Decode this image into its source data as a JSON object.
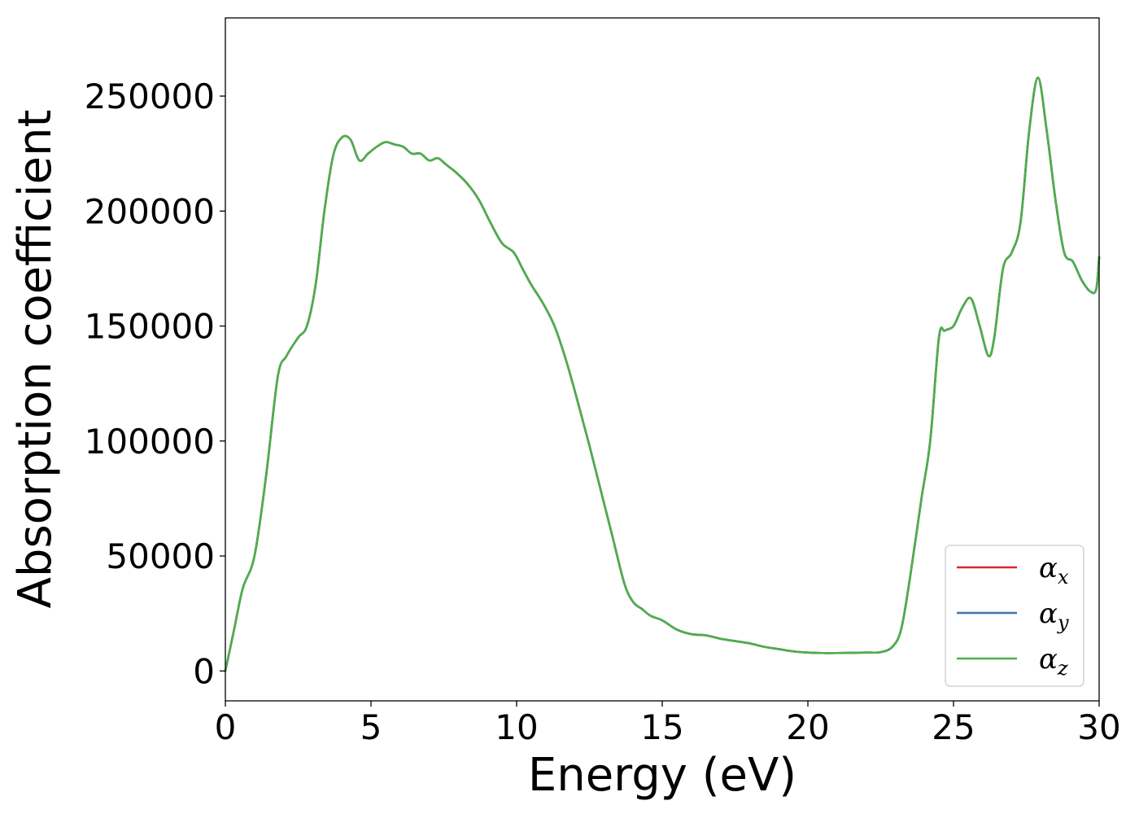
{
  "chart_data": {
    "type": "line",
    "xlabel": "Energy (eV)",
    "ylabel": "Absorption coefficient",
    "xlim": [
      0,
      30
    ],
    "ylim": [
      -13000,
      284000
    ],
    "xticks": [
      0,
      5,
      10,
      15,
      20,
      25,
      30
    ],
    "yticks": [
      0,
      50000,
      100000,
      150000,
      200000,
      250000
    ],
    "grid": false,
    "legend_position": "bottom-right",
    "x": [
      0,
      0.3,
      0.6,
      1.0,
      1.4,
      1.8,
      2.1,
      2.5,
      2.8,
      3.1,
      3.4,
      3.7,
      4.0,
      4.3,
      4.6,
      4.9,
      5.2,
      5.5,
      5.8,
      6.1,
      6.4,
      6.7,
      7.0,
      7.3,
      7.6,
      7.9,
      8.3,
      8.7,
      9.1,
      9.5,
      9.9,
      10.2,
      10.5,
      10.9,
      11.3,
      11.7,
      12.1,
      12.5,
      12.9,
      13.3,
      13.7,
      14.0,
      14.3,
      14.6,
      15.0,
      15.5,
      16.0,
      16.5,
      17.0,
      17.5,
      18.0,
      18.5,
      19.0,
      19.5,
      20.0,
      20.5,
      21.0,
      21.5,
      22.0,
      22.5,
      22.9,
      23.2,
      23.5,
      23.9,
      24.2,
      24.5,
      24.7,
      25.0,
      25.3,
      25.6,
      25.9,
      26.2,
      26.4,
      26.7,
      27.0,
      27.3,
      27.6,
      27.9,
      28.2,
      28.5,
      28.8,
      29.1,
      29.4,
      29.7,
      29.9,
      30.0
    ],
    "series": [
      {
        "name": "α_x",
        "color": "#d62728",
        "y": [
          0,
          18000,
          36000,
          50000,
          85000,
          128000,
          137000,
          145000,
          150000,
          168000,
          200000,
          224000,
          232000,
          231000,
          222000,
          225000,
          228000,
          230000,
          229000,
          228000,
          225000,
          225000,
          222000,
          223000,
          220000,
          217000,
          212000,
          205000,
          195000,
          186000,
          182000,
          175000,
          168000,
          160000,
          150000,
          135000,
          117000,
          98000,
          78000,
          58000,
          38000,
          30000,
          27000,
          24000,
          22000,
          18000,
          16000,
          15500,
          14000,
          13000,
          12000,
          10500,
          9500,
          8500,
          8000,
          7800,
          7800,
          7900,
          8000,
          8200,
          10500,
          18000,
          40000,
          75000,
          100000,
          145000,
          148000,
          150000,
          158000,
          162000,
          150000,
          137000,
          145000,
          175000,
          182000,
          195000,
          235000,
          258000,
          235000,
          205000,
          182000,
          178000,
          170000,
          165000,
          166000,
          180000
        ]
      },
      {
        "name": "α_y",
        "color": "#3b75af",
        "y": [
          0,
          18000,
          36000,
          50000,
          85000,
          128000,
          137000,
          145000,
          150000,
          168000,
          200000,
          224000,
          232000,
          231000,
          222000,
          225000,
          228000,
          230000,
          229000,
          228000,
          225000,
          225000,
          222000,
          223000,
          220000,
          217000,
          212000,
          205000,
          195000,
          186000,
          182000,
          175000,
          168000,
          160000,
          150000,
          135000,
          117000,
          98000,
          78000,
          58000,
          38000,
          30000,
          27000,
          24000,
          22000,
          18000,
          16000,
          15500,
          14000,
          13000,
          12000,
          10500,
          9500,
          8500,
          8000,
          7800,
          7800,
          7900,
          8000,
          8200,
          10500,
          18000,
          40000,
          75000,
          100000,
          145000,
          148000,
          150000,
          158000,
          162000,
          150000,
          137000,
          145000,
          175000,
          182000,
          195000,
          235000,
          258000,
          235000,
          205000,
          182000,
          178000,
          170000,
          165000,
          166000,
          180000
        ]
      },
      {
        "name": "α_z",
        "color": "#4daf4a",
        "y": [
          0,
          18000,
          36000,
          50000,
          85000,
          128000,
          137000,
          145000,
          150000,
          168000,
          200000,
          224000,
          232000,
          231000,
          222000,
          225000,
          228000,
          230000,
          229000,
          228000,
          225000,
          225000,
          222000,
          223000,
          220000,
          217000,
          212000,
          205000,
          195000,
          186000,
          182000,
          175000,
          168000,
          160000,
          150000,
          135000,
          117000,
          98000,
          78000,
          58000,
          38000,
          30000,
          27000,
          24000,
          22000,
          18000,
          16000,
          15500,
          14000,
          13000,
          12000,
          10500,
          9500,
          8500,
          8000,
          7800,
          7800,
          7900,
          8000,
          8200,
          10500,
          18000,
          40000,
          75000,
          100000,
          145000,
          148000,
          150000,
          158000,
          162000,
          150000,
          137000,
          145000,
          175000,
          182000,
          195000,
          235000,
          258000,
          235000,
          205000,
          182000,
          178000,
          170000,
          165000,
          166000,
          180000
        ]
      }
    ],
    "legend": [
      {
        "base": "α",
        "sub": "x",
        "color": "#d62728"
      },
      {
        "base": "α",
        "sub": "y",
        "color": "#3b75af"
      },
      {
        "base": "α",
        "sub": "z",
        "color": "#4daf4a"
      }
    ]
  }
}
